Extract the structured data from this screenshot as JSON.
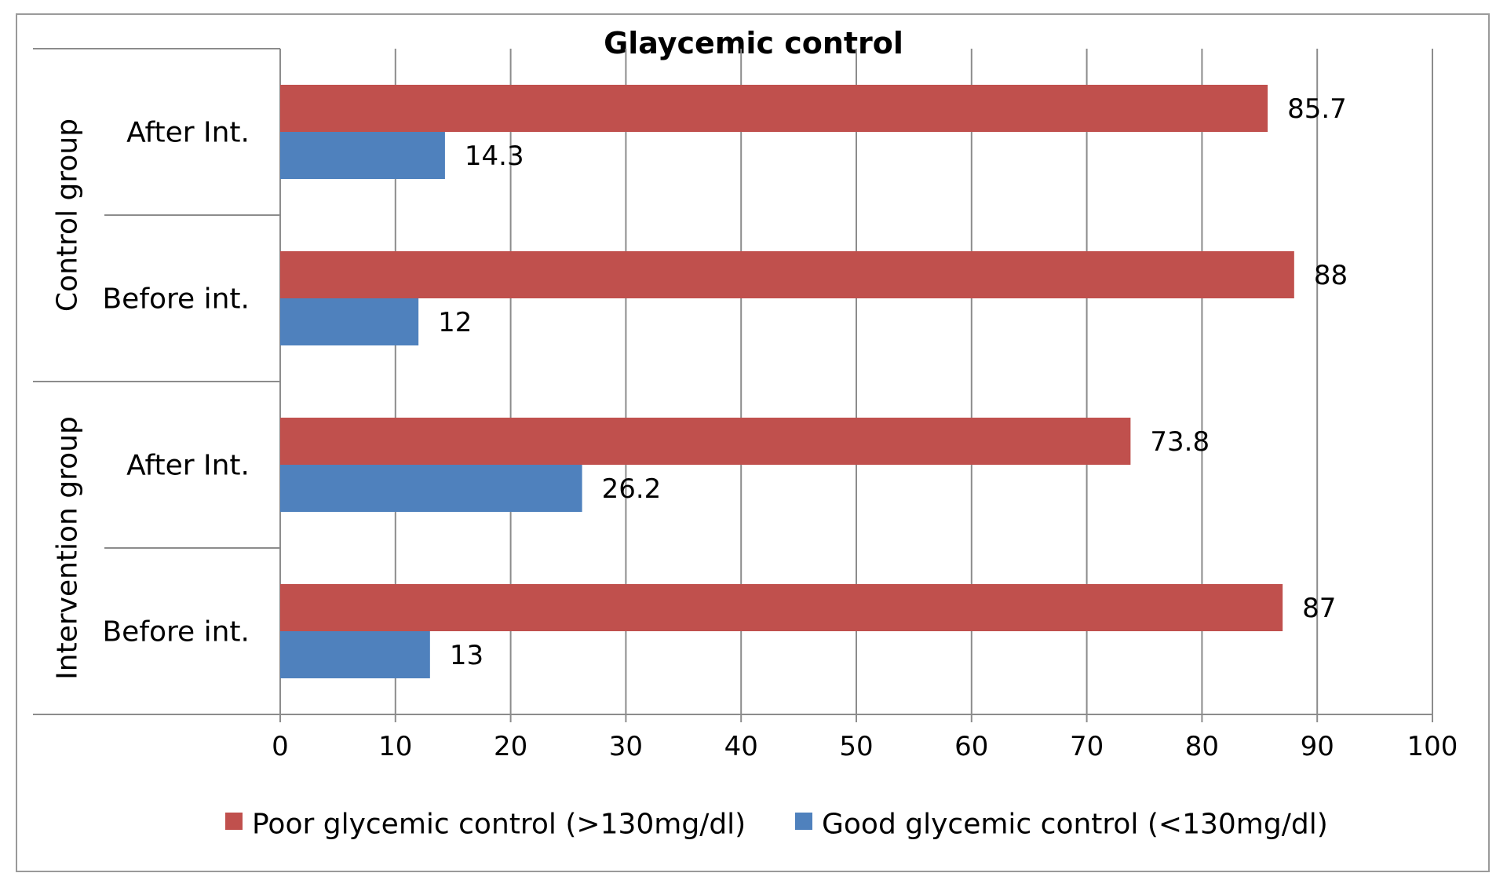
{
  "chart_data": {
    "type": "bar",
    "orientation": "horizontal",
    "title": "Glaycemic control",
    "xlim": [
      0,
      100
    ],
    "xticks": [
      0,
      10,
      20,
      30,
      40,
      50,
      60,
      70,
      80,
      90,
      100
    ],
    "grid": true,
    "legend_position": "bottom",
    "groups": [
      {
        "label": "Control group",
        "categories": [
          "After Int.",
          "Before int."
        ]
      },
      {
        "label": "Intervention group",
        "categories": [
          "After Int.",
          "Before int."
        ]
      }
    ],
    "categories": [
      "After Int.",
      "Before int.",
      "After Int.",
      "Before int."
    ],
    "series": [
      {
        "name": "Poor glycemic control (>130mg/dl)",
        "color": "#c0504d",
        "values": [
          85.7,
          88,
          73.8,
          87
        ]
      },
      {
        "name": "Good glycemic control (<130mg/dl)",
        "color": "#4f81bd",
        "values": [
          14.3,
          12,
          26.2,
          13
        ]
      }
    ]
  }
}
